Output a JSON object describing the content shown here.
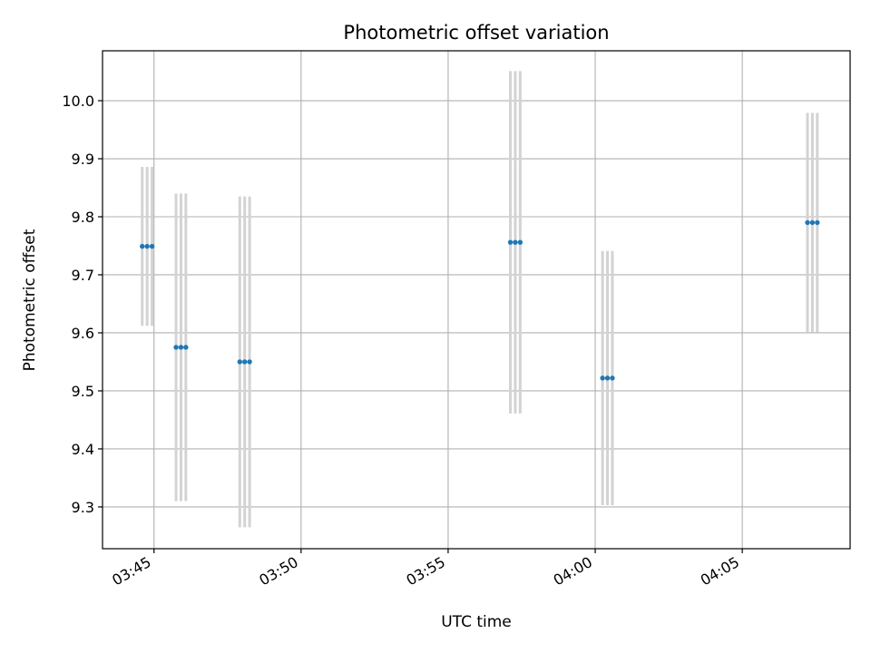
{
  "chart_data": {
    "type": "scatter",
    "title": "Photometric offset variation",
    "xlabel": "UTC time",
    "ylabel": "Photometric offset",
    "x_unit": "UTC",
    "x_ticks": [
      "03:45",
      "03:50",
      "03:55",
      "04:00",
      "04:05"
    ],
    "x_range": [
      "03:43:15",
      "04:08:40"
    ],
    "y_ticks": [
      "9.3",
      "9.4",
      "9.5",
      "9.6",
      "9.7",
      "9.8",
      "9.9",
      "10.0"
    ],
    "ylim": [
      9.228,
      10.086
    ],
    "grid": true,
    "marker_color": "#1f77b4",
    "errorbar_color": "#d3d3d3",
    "points": [
      {
        "x": "03:44:36",
        "y": 9.749,
        "yerr": 0.137
      },
      {
        "x": "03:44:46",
        "y": 9.749,
        "yerr": 0.137
      },
      {
        "x": "03:44:56",
        "y": 9.749,
        "yerr": 0.137
      },
      {
        "x": "03:45:45",
        "y": 9.575,
        "yerr": 0.265
      },
      {
        "x": "03:45:55",
        "y": 9.575,
        "yerr": 0.265
      },
      {
        "x": "03:46:05",
        "y": 9.575,
        "yerr": 0.265
      },
      {
        "x": "03:47:55",
        "y": 9.55,
        "yerr": 0.285
      },
      {
        "x": "03:48:05",
        "y": 9.55,
        "yerr": 0.285
      },
      {
        "x": "03:48:15",
        "y": 9.55,
        "yerr": 0.285
      },
      {
        "x": "03:57:07",
        "y": 9.756,
        "yerr": 0.295
      },
      {
        "x": "03:57:17",
        "y": 9.756,
        "yerr": 0.295
      },
      {
        "x": "03:57:27",
        "y": 9.756,
        "yerr": 0.295
      },
      {
        "x": "04:00:15",
        "y": 9.522,
        "yerr": 0.219
      },
      {
        "x": "04:00:25",
        "y": 9.522,
        "yerr": 0.219
      },
      {
        "x": "04:00:35",
        "y": 9.522,
        "yerr": 0.219
      },
      {
        "x": "04:07:13",
        "y": 9.79,
        "yerr": 0.189
      },
      {
        "x": "04:07:23",
        "y": 9.79,
        "yerr": 0.189
      },
      {
        "x": "04:07:33",
        "y": 9.79,
        "yerr": 0.189
      }
    ]
  }
}
